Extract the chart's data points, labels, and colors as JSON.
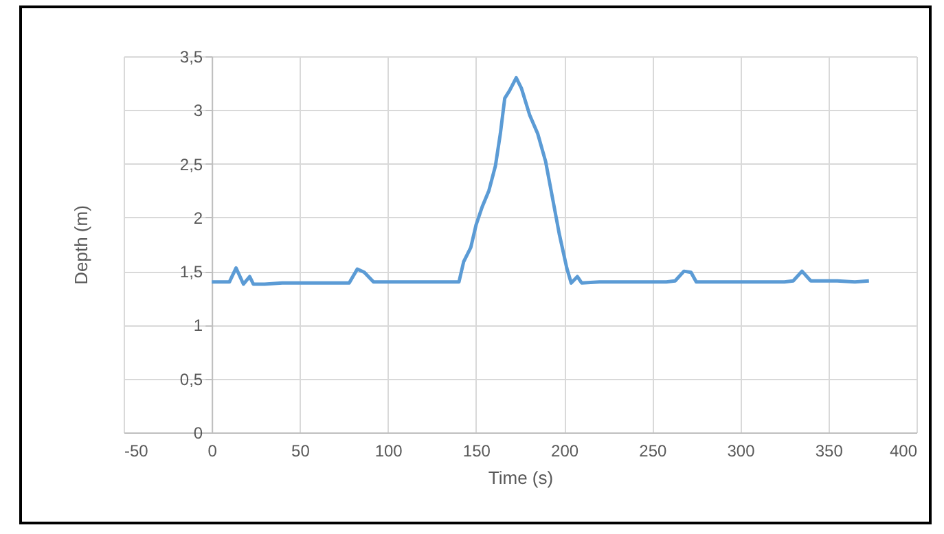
{
  "chart_data": {
    "type": "line",
    "xlabel": "Time (s)",
    "ylabel": "Depth (m)",
    "xlim": [
      -50,
      400
    ],
    "xticks": [
      -50,
      0,
      50,
      100,
      150,
      200,
      250,
      300,
      350,
      400
    ],
    "ylim": [
      0,
      3.5
    ],
    "yticks": [
      0,
      {
        "value": 0.5,
        "label": "0,5"
      },
      1,
      {
        "value": 1.5,
        "label": "1,5"
      },
      2,
      {
        "value": 2.5,
        "label": "2,5"
      },
      3,
      {
        "value": 3.5,
        "label": "3,5"
      }
    ],
    "grid": true,
    "marker": "none",
    "line_style": "solid",
    "series": [
      {
        "color": "#5b9bd5",
        "x": [
          0,
          5,
          10,
          13.8,
          18,
          21.5,
          23.6,
          30,
          40,
          50,
          60,
          70,
          78,
          82.6,
          86.6,
          91.8,
          100,
          110,
          120,
          130,
          140.3,
          143,
          147,
          150,
          153.5,
          157.3,
          161,
          163.8,
          166.3,
          169,
          172.8,
          175.8,
          180.5,
          185,
          189.5,
          193.3,
          197.2,
          201.5,
          204,
          207.5,
          210,
          220,
          230,
          240,
          250,
          258,
          263,
          268,
          272,
          275,
          285,
          300,
          315,
          325,
          330,
          335,
          340,
          345,
          355,
          365,
          373
        ],
        "values": [
          1.4,
          1.4,
          1.4,
          1.53,
          1.38,
          1.45,
          1.38,
          1.38,
          1.39,
          1.39,
          1.39,
          1.39,
          1.39,
          1.52,
          1.49,
          1.4,
          1.4,
          1.4,
          1.4,
          1.4,
          1.4,
          1.59,
          1.72,
          1.93,
          2.1,
          2.25,
          2.48,
          2.78,
          3.11,
          3.18,
          3.3,
          3.2,
          2.95,
          2.78,
          2.52,
          2.19,
          1.85,
          1.53,
          1.39,
          1.45,
          1.39,
          1.4,
          1.4,
          1.4,
          1.4,
          1.4,
          1.41,
          1.5,
          1.49,
          1.4,
          1.4,
          1.4,
          1.4,
          1.4,
          1.41,
          1.5,
          1.41,
          1.41,
          1.41,
          1.4,
          1.41
        ]
      }
    ]
  }
}
